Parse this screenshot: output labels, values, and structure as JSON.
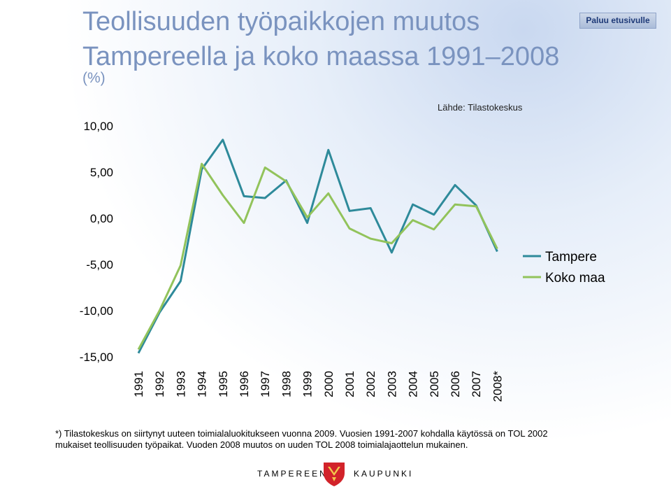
{
  "header": {
    "title_line1": "Teollisuuden työpaikkojen muutos",
    "title_line2": "Tampereella ja koko maassa 1991–2008",
    "subtitle": "(%)",
    "home_button": "Paluu etusivulle",
    "source": "Lähde: Tilastokeskus"
  },
  "chart_data": {
    "type": "line",
    "categories": [
      "1991",
      "1992",
      "1993",
      "1994",
      "1995",
      "1996",
      "1997",
      "1998",
      "1999",
      "2000",
      "2001",
      "2002",
      "2003",
      "2004",
      "2005",
      "2006",
      "2007",
      "2008*"
    ],
    "ylim": [
      -15,
      10
    ],
    "yticks": [
      "10,00",
      "5,00",
      "0,00",
      "-5,00",
      "-10,00",
      "-15,00"
    ],
    "ytick_values": [
      10,
      5,
      0,
      -5,
      -10,
      -15
    ],
    "grid": false,
    "legend_position": "right",
    "series": [
      {
        "name": "Tampere",
        "color": "#2e8a9a",
        "values": [
          -14.6,
          -10.2,
          -6.8,
          5.3,
          8.5,
          2.4,
          2.2,
          4.1,
          -0.5,
          7.4,
          0.8,
          1.1,
          -3.7,
          1.5,
          0.4,
          3.6,
          1.4,
          -3.6
        ]
      },
      {
        "name": "Koko maa",
        "color": "#92c35b",
        "values": [
          -14.2,
          -10.0,
          -5.1,
          5.9,
          2.5,
          -0.5,
          5.5,
          4.0,
          0.1,
          2.7,
          -1.1,
          -2.2,
          -2.7,
          -0.2,
          -1.2,
          1.5,
          1.3,
          -3.3
        ]
      }
    ]
  },
  "footnote": {
    "line1": "*) Tilastokeskus on siirtynyt uuteen toimialaluokitukseen vuonna  2009. Vuosien 1991-2007 kohdalla käytössä on TOL 2002",
    "line2": "mukaiset teollisuuden työpaikat. Vuoden 2008 muutos on uuden TOL 2008 toimialajaottelun mukainen."
  },
  "footer": {
    "left": "TAMPEREEN",
    "right": "KAUPUNKI",
    "logo_icon": "tampere-coat-of-arms-icon"
  }
}
